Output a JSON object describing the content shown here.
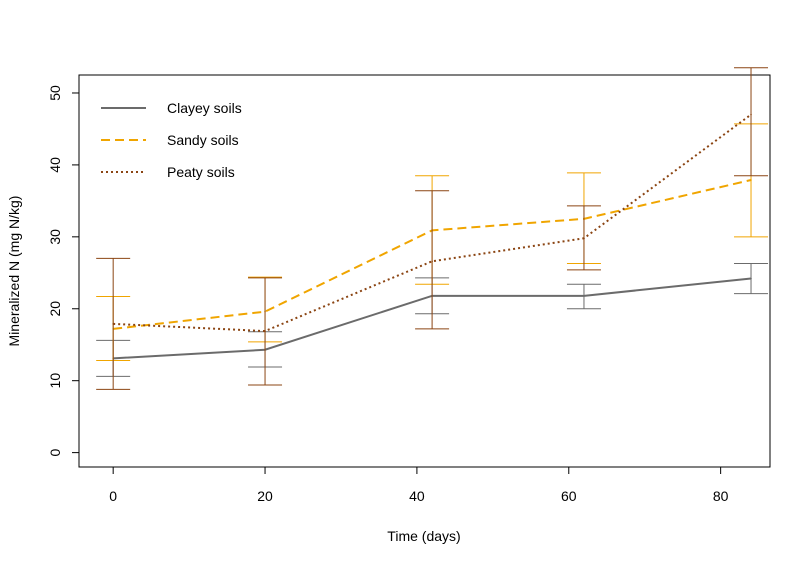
{
  "chart_data": {
    "type": "line",
    "xlabel": "Time (days)",
    "ylabel": "Mineralized N (mg N/kg)",
    "xlim": [
      -4.5,
      86.5
    ],
    "ylim": [
      -2,
      52.5
    ],
    "x_ticks": [
      0,
      20,
      40,
      60,
      80
    ],
    "y_ticks": [
      0,
      10,
      20,
      30,
      40,
      50
    ],
    "grid": false,
    "legend_position": "top-left",
    "series": [
      {
        "name": "Clayey soils",
        "color": "#6b6b6b",
        "line_style": "solid",
        "x": [
          0,
          20,
          42,
          62,
          84
        ],
        "y": [
          13.1,
          14.3,
          21.8,
          21.8,
          24.2
        ],
        "err_low": [
          10.6,
          11.9,
          19.3,
          20.0,
          22.1
        ],
        "err_high": [
          15.6,
          16.8,
          24.3,
          23.4,
          26.3
        ]
      },
      {
        "name": "Sandy soils",
        "color": "#f0a500",
        "line_style": "dashed",
        "x": [
          0,
          20,
          42,
          62,
          84
        ],
        "y": [
          17.2,
          19.6,
          30.9,
          32.5,
          37.9
        ],
        "err_low": [
          12.8,
          15.4,
          23.4,
          26.3,
          30.0
        ],
        "err_high": [
          21.7,
          24.4,
          38.5,
          38.9,
          45.7
        ]
      },
      {
        "name": "Peaty soils",
        "color": "#8b4513",
        "line_style": "dotted",
        "x": [
          0,
          20,
          42,
          62,
          84
        ],
        "y": [
          17.9,
          16.9,
          26.6,
          29.8,
          47.0
        ],
        "err_low": [
          8.8,
          9.4,
          17.2,
          25.4,
          38.5
        ],
        "err_high": [
          27.0,
          24.3,
          36.4,
          34.3,
          53.5
        ]
      }
    ]
  }
}
